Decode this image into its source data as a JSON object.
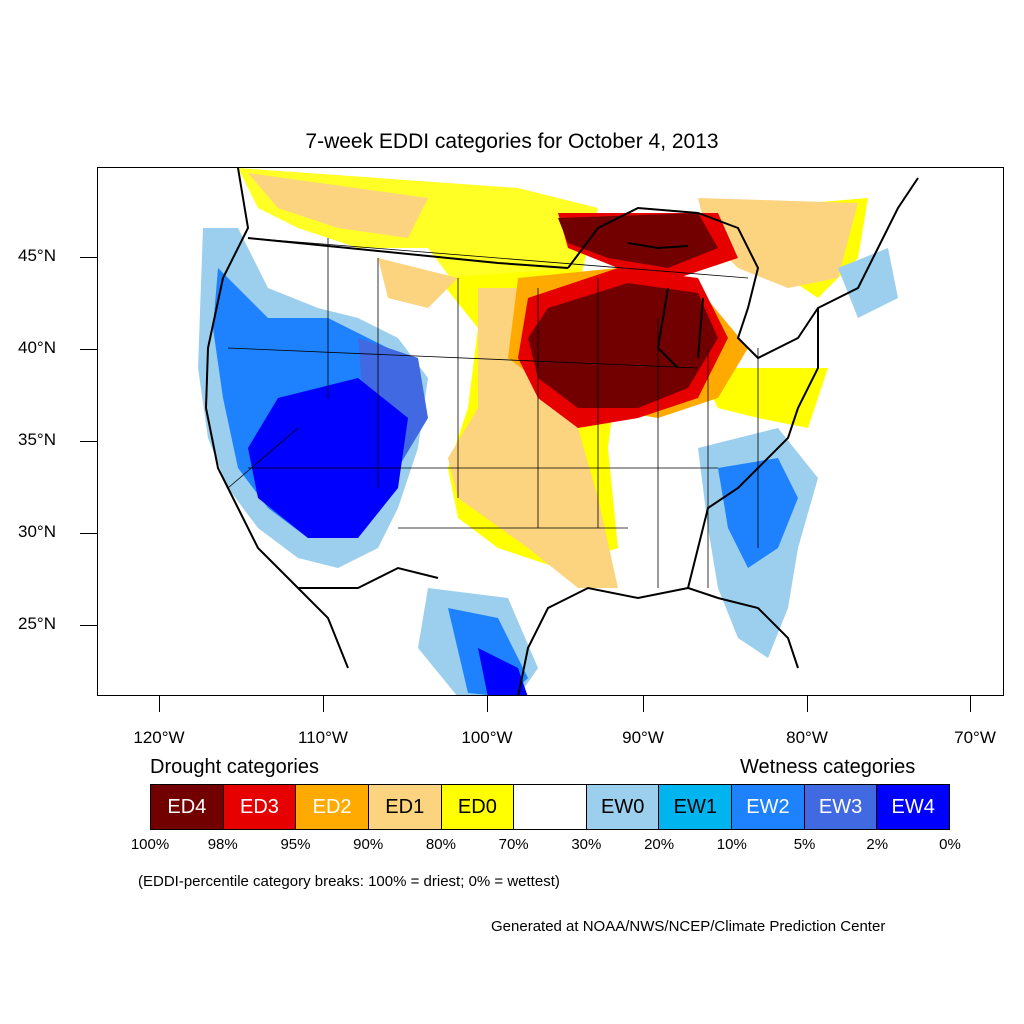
{
  "title": "7-week EDDI categories for October 4, 2013",
  "lat_labels": [
    "45°N",
    "40°N",
    "35°N",
    "30°N",
    "25°N"
  ],
  "lon_labels": [
    "120°W",
    "110°W",
    "100°W",
    "90°W",
    "80°W",
    "70°W"
  ],
  "legend": {
    "drought_heading": "Drought categories",
    "wetness_heading": "Wetness categories",
    "categories": [
      {
        "label": "ED4",
        "color": "#730000",
        "text_color": "#ffffff"
      },
      {
        "label": "ED3",
        "color": "#e60000",
        "text_color": "#ffffff"
      },
      {
        "label": "ED2",
        "color": "#ffaa00",
        "text_color": "#ffffff"
      },
      {
        "label": "ED1",
        "color": "#fcd37f",
        "text_color": "#000000"
      },
      {
        "label": "ED0",
        "color": "#ffff00",
        "text_color": "#000000"
      },
      {
        "label": "",
        "color": "#ffffff",
        "text_color": "#000000"
      },
      {
        "label": "EW0",
        "color": "#9ccfee",
        "text_color": "#000000"
      },
      {
        "label": "EW1",
        "color": "#00b4f0",
        "text_color": "#000000"
      },
      {
        "label": "EW2",
        "color": "#1e82ff",
        "text_color": "#ffffff"
      },
      {
        "label": "EW3",
        "color": "#4169e1",
        "text_color": "#ffffff"
      },
      {
        "label": "EW4",
        "color": "#0000ff",
        "text_color": "#ffffff"
      }
    ],
    "percentiles": [
      "100%",
      "98%",
      "95%",
      "90%",
      "80%",
      "70%",
      "30%",
      "20%",
      "10%",
      "5%",
      "2%",
      "0%"
    ]
  },
  "note": "(EDDI-percentile category breaks: 100% = driest; 0% = wettest)",
  "credit": "Generated at NOAA/NWS/NCEP/Climate Prediction Center"
}
